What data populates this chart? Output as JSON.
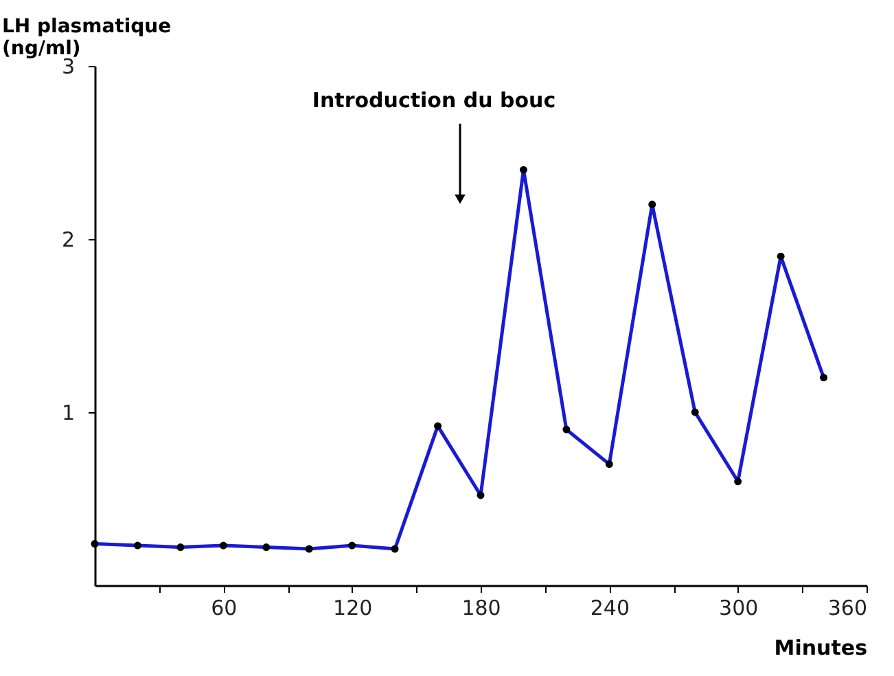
{
  "chart_data": {
    "type": "line",
    "ylabel": "LH plasmatique\n(ng/ml)",
    "xlabel": "Minutes",
    "x": [
      0,
      20,
      40,
      60,
      80,
      100,
      120,
      140,
      160,
      180,
      200,
      220,
      240,
      260,
      280,
      300,
      320,
      340
    ],
    "series": [
      {
        "color": "#1a1ad6",
        "values": [
          0.24,
          0.23,
          0.22,
          0.23,
          0.22,
          0.21,
          0.23,
          0.21,
          0.92,
          0.52,
          2.4,
          0.9,
          0.7,
          2.2,
          1.0,
          0.6,
          1.9,
          1.2
        ]
      }
    ],
    "xlim": [
      0,
      360
    ],
    "ylim": [
      0,
      3
    ],
    "xticks": [
      {
        "value": 30,
        "label": null
      },
      60,
      {
        "value": 90,
        "label": null
      },
      120,
      {
        "value": 150,
        "label": null
      },
      180,
      {
        "value": 210,
        "label": null
      },
      240,
      {
        "value": 270,
        "label": null
      },
      300,
      {
        "value": 330,
        "label": null
      },
      360
    ],
    "yticks": [
      1,
      2,
      3
    ],
    "annotations": [
      "Introduction du bouc"
    ],
    "marker": "circle",
    "line_style": "solid",
    "grid": false
  }
}
